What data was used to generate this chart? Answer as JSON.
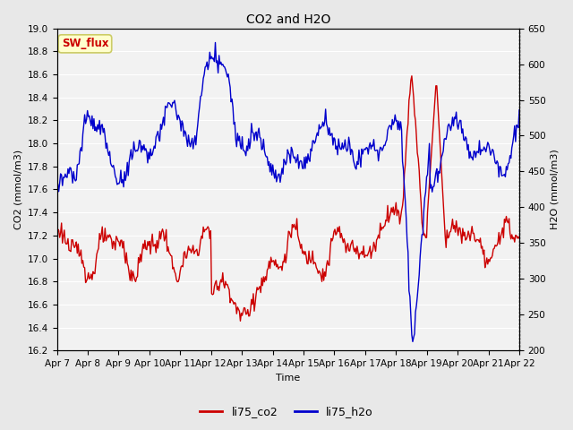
{
  "title": "CO2 and H2O",
  "xlabel": "Time",
  "ylabel_left": "CO2 (mmol/m3)",
  "ylabel_right": "H2O (mmol/m3)",
  "co2_ylim": [
    16.2,
    19.0
  ],
  "h2o_ylim": [
    200,
    650
  ],
  "co2_yticks": [
    16.2,
    16.4,
    16.6,
    16.8,
    17.0,
    17.2,
    17.4,
    17.6,
    17.8,
    18.0,
    18.2,
    18.4,
    18.6,
    18.8,
    19.0
  ],
  "h2o_yticks": [
    200,
    250,
    300,
    350,
    400,
    450,
    500,
    550,
    600,
    650
  ],
  "xtick_labels": [
    "Apr 7",
    "Apr 8",
    "Apr 9",
    "Apr 10",
    "Apr 11",
    "Apr 12",
    "Apr 13",
    "Apr 14",
    "Apr 15",
    "Apr 16",
    "Apr 17",
    "Apr 18",
    "Apr 19",
    "Apr 20",
    "Apr 21",
    "Apr 22"
  ],
  "co2_color": "#cc0000",
  "h2o_color": "#0000cc",
  "fig_bg_color": "#e8e8e8",
  "plot_bg_color": "#f2f2f2",
  "annotation_text": "SW_flux",
  "annotation_color": "#cc0000",
  "annotation_bg": "#ffffcc",
  "annotation_edge": "#cccc66",
  "legend_co2": "li75_co2",
  "legend_h2o": "li75_h2o",
  "linewidth": 1.0,
  "grid_color": "#ffffff",
  "title_fontsize": 10,
  "label_fontsize": 8,
  "tick_fontsize": 7.5
}
